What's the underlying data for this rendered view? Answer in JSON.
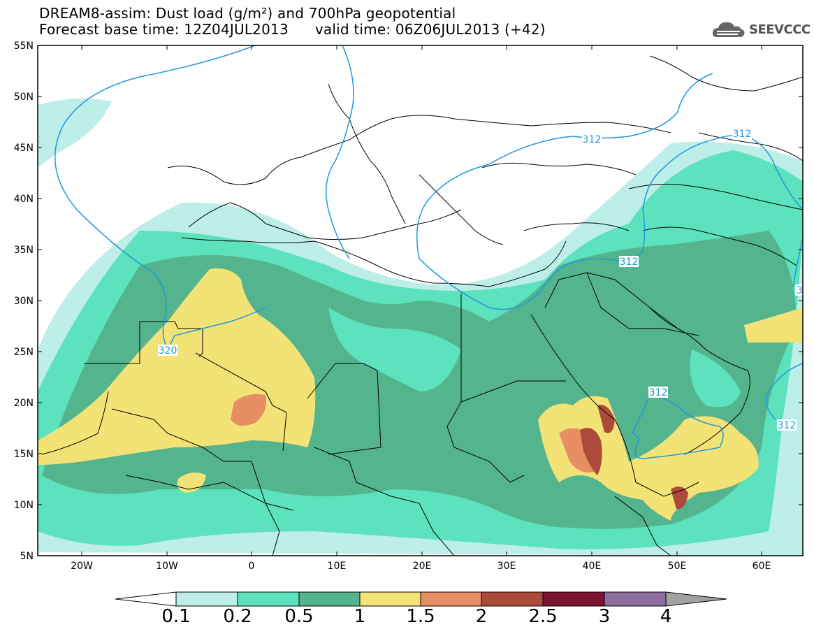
{
  "title": {
    "line1": "DREAM8-assim: Dust load (g/m²) and 700hPa geopotential",
    "line2_left": "Forecast base time: 12Z04JUL2013",
    "line2_right": "valid time: 06Z06JUL2013 (+42)"
  },
  "logo": {
    "text": "SEEVCCC",
    "icon": "cloud-icon"
  },
  "map": {
    "lon_range": [
      -25,
      65
    ],
    "lat_range": [
      5,
      55
    ],
    "lat_ticks": [
      "55N",
      "50N",
      "45N",
      "40N",
      "35N",
      "30N",
      "25N",
      "20N",
      "15N",
      "10N",
      "5N"
    ],
    "lon_ticks": [
      "20W",
      "10W",
      "0",
      "10E",
      "20E",
      "30E",
      "40E",
      "50E",
      "60E"
    ],
    "contour_labels": [
      "320",
      "312",
      "312",
      "312",
      "312",
      "3"
    ]
  },
  "colorbar": {
    "levels": [
      "0.1",
      "0.2",
      "0.5",
      "1",
      "1.5",
      "2",
      "2.5",
      "3",
      "4"
    ],
    "colors": [
      "#bdeee8",
      "#5ce2bc",
      "#54b48e",
      "#f3e377",
      "#e88e64",
      "#ad4b3b",
      "#7d1332",
      "#8d6d9f"
    ],
    "under_color": "#ffffff",
    "over_color": "#a2a2a2"
  },
  "colors": {
    "contour": "#1f97dc",
    "border": "#000000"
  }
}
